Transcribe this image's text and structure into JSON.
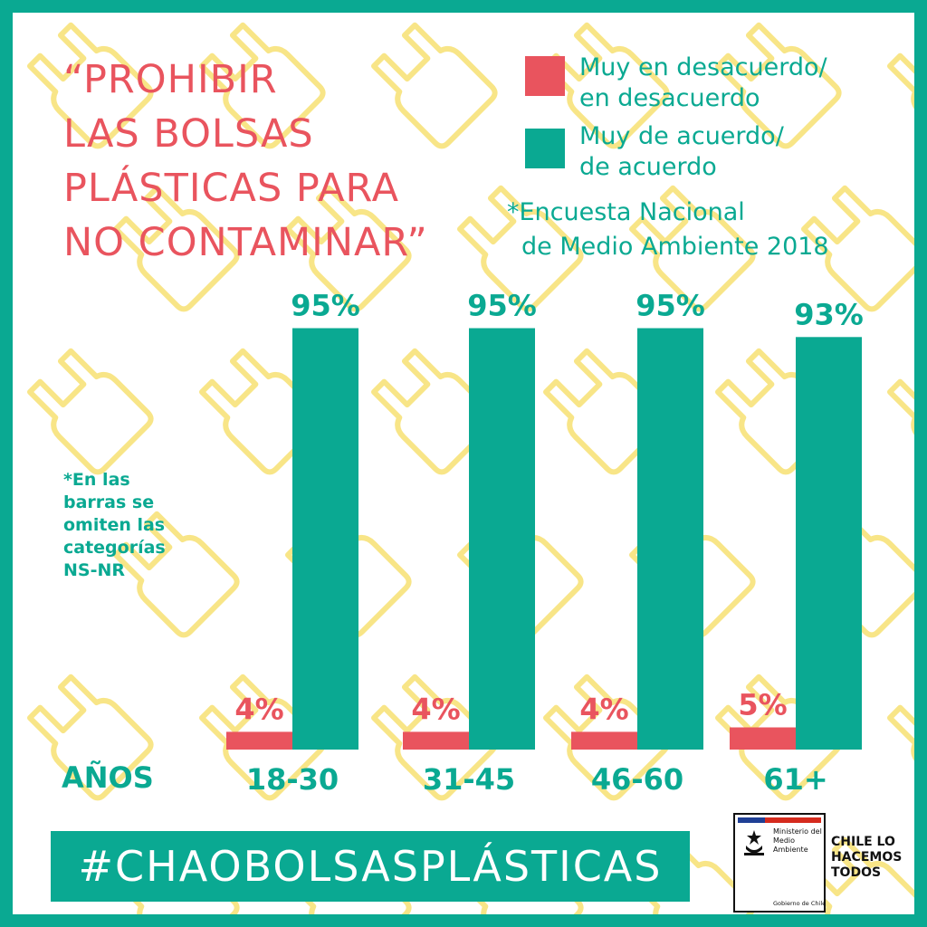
{
  "title": [
    "“PROHIBIR",
    "LAS BOLSAS",
    "PLÁSTICAS PARA",
    "NO CONTAMINAR”"
  ],
  "legend": [
    {
      "lines": [
        "Muy en desacuerdo/",
        "en desacuerdo"
      ],
      "color": "#e9545e"
    },
    {
      "lines": [
        "Muy de acuerdo/",
        "de acuerdo"
      ],
      "color": "#0aa992"
    }
  ],
  "source": [
    "*Encuesta Nacional",
    "de Medio Ambiente 2018"
  ],
  "note": [
    "*En las",
    "barras se",
    "omiten las",
    "categorías",
    "NS-NR"
  ],
  "chart_data": {
    "type": "bar",
    "categories": [
      "18-30",
      "31-45",
      "46-60",
      "61+"
    ],
    "series": [
      {
        "name": "Muy en desacuerdo/ en desacuerdo",
        "values": [
          4,
          4,
          4,
          5
        ],
        "labels": [
          "4%",
          "4%",
          "4%",
          "5%"
        ],
        "color": "#e9545e"
      },
      {
        "name": "Muy de acuerdo/ de acuerdo",
        "values": [
          95,
          95,
          95,
          93
        ],
        "labels": [
          "95%",
          "95%",
          "95%",
          "93%"
        ],
        "color": "#0aa992"
      }
    ],
    "xlabel": "AÑOS",
    "ylim": [
      0,
      100
    ],
    "grid": false,
    "legend_position": "top-right"
  },
  "hashtag": "#CHAOBOLSASPLÁSTICAS",
  "logo": {
    "ministry": [
      "Ministerio del",
      "Medio",
      "Ambiente"
    ],
    "government": "Gobierno de Chile"
  },
  "slogan": [
    "CHILE LO",
    "HACEMOS",
    "TODOS"
  ],
  "colors": {
    "teal": "#0aa992",
    "coral": "#e9545e",
    "pattern": "#f7e27a"
  },
  "decoration": {
    "pattern_icon": "plastic-bag-outline-icon"
  }
}
